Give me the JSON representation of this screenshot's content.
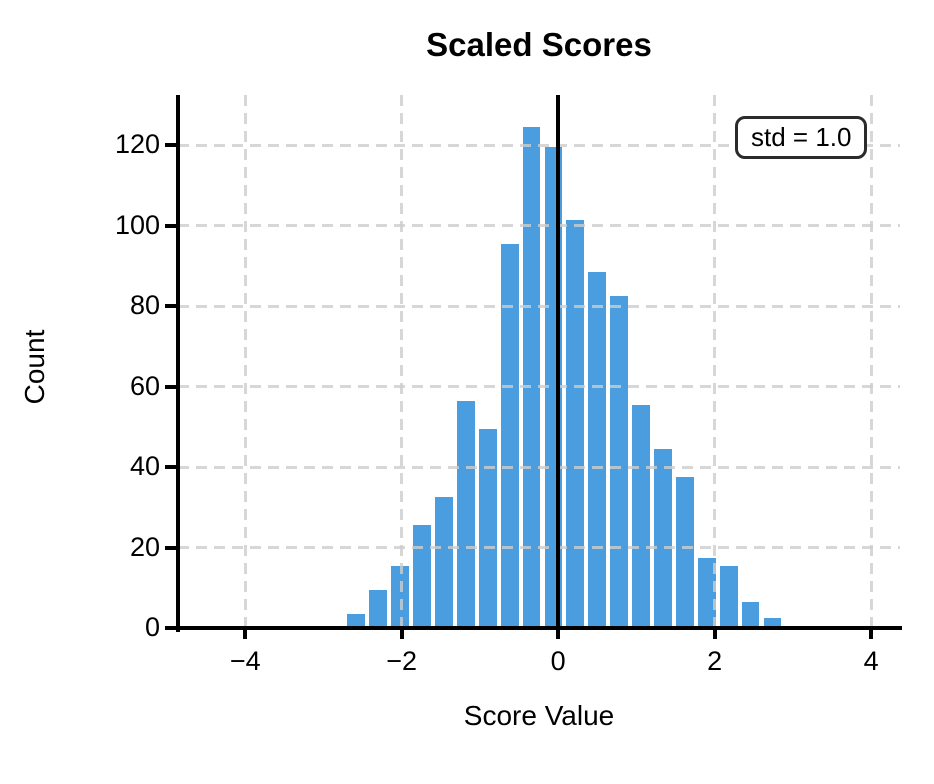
{
  "chart_data": {
    "type": "bar",
    "subtype": "histogram",
    "title": "Scaled Scores",
    "xlabel": "Score Value",
    "ylabel": "Count",
    "annotation": "std = 1.0",
    "n_total": 1000,
    "bin_start": -4.4,
    "bin_width": 0.28,
    "counts": [
      1,
      0,
      0,
      1,
      0,
      1,
      4,
      10,
      16,
      26,
      33,
      57,
      50,
      96,
      125,
      120,
      102,
      89,
      83,
      56,
      45,
      38,
      18,
      16,
      7,
      3,
      1,
      1,
      0,
      1
    ],
    "vline_x": 0,
    "xlim": [
      -4.86,
      4.37
    ],
    "ylim": [
      0,
      132.5
    ],
    "xticks": [
      {
        "v": -4,
        "label": "−4"
      },
      {
        "v": -2,
        "label": "−2"
      },
      {
        "v": 0,
        "label": "0"
      },
      {
        "v": 2,
        "label": "2"
      },
      {
        "v": 4,
        "label": "4"
      }
    ],
    "yticks": [
      {
        "v": 0,
        "label": "0"
      },
      {
        "v": 20,
        "label": "20"
      },
      {
        "v": 40,
        "label": "40"
      },
      {
        "v": 60,
        "label": "60"
      },
      {
        "v": 80,
        "label": "80"
      },
      {
        "v": 100,
        "label": "100"
      },
      {
        "v": 120,
        "label": "120"
      }
    ],
    "grid": {
      "style": "dashed",
      "on_top_of_bars": true
    },
    "colors": {
      "bar": "#4a9ee0",
      "bar_edge": "#ffffff",
      "tiny_bar": "#cfe3f5",
      "grid": "#cdcdcd",
      "axis": "#000000",
      "vline": "#000000",
      "annotation_border": "#2b2b2b",
      "background": "#ffffff"
    }
  }
}
